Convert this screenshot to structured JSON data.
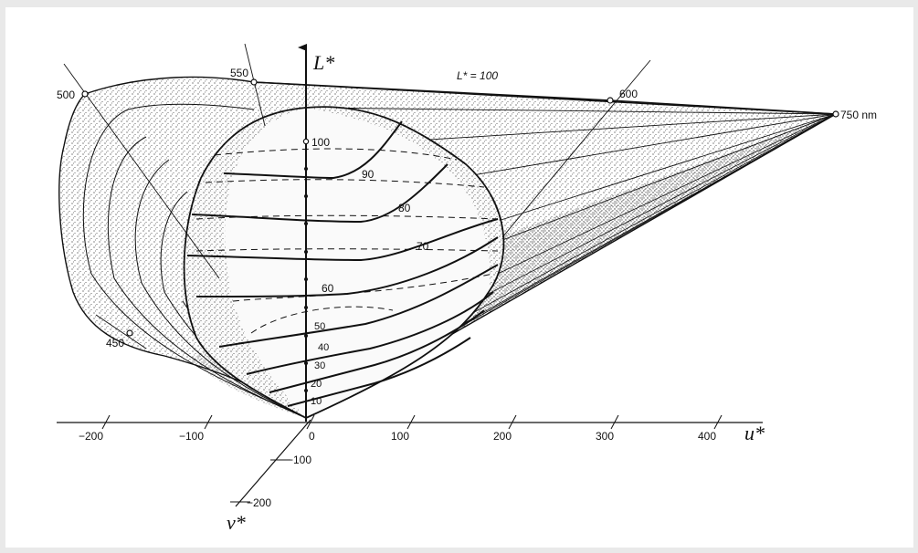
{
  "axes": {
    "lightness_label": "L*",
    "u_label": "u*",
    "v_label": "v*",
    "u_ticks": [
      "−200",
      "−100",
      "0",
      "100",
      "200",
      "300",
      "400"
    ],
    "v_ticks": [
      "−100",
      "−200"
    ]
  },
  "plane_label": "L* = 100",
  "wavelength_labels": [
    "500",
    "550",
    "600",
    "750 nm",
    "450"
  ],
  "lightness_scale": [
    "100",
    "90",
    "80",
    "70",
    "60",
    "50",
    "40",
    "30",
    "20",
    "10"
  ],
  "colors": {
    "background": "#e9e9e9",
    "paper": "#ffffff",
    "ink": "#111111"
  }
}
